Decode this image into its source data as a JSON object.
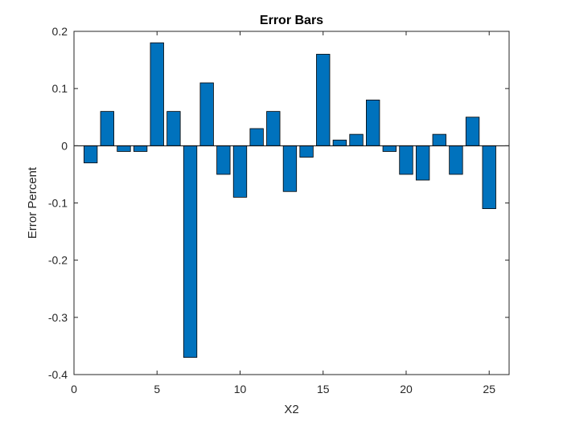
{
  "chart_data": {
    "type": "bar",
    "title": "Error Bars",
    "xlabel": "X2",
    "ylabel": "Error Percent",
    "x": [
      1,
      2,
      3,
      4,
      5,
      6,
      7,
      8,
      9,
      10,
      11,
      12,
      13,
      14,
      15,
      16,
      17,
      18,
      19,
      20,
      21,
      22,
      23,
      24,
      25
    ],
    "values": [
      -0.03,
      0.06,
      -0.01,
      -0.01,
      0.18,
      0.06,
      -0.37,
      0.11,
      -0.05,
      -0.09,
      0.03,
      0.06,
      -0.08,
      -0.02,
      0.16,
      0.01,
      0.02,
      0.08,
      -0.01,
      -0.05,
      -0.06,
      0.02,
      -0.05,
      0.05,
      -0.11
    ],
    "xlim": [
      0,
      26.2
    ],
    "ylim": [
      -0.4,
      0.2
    ],
    "xticks": [
      0,
      5,
      10,
      15,
      20,
      25
    ],
    "xtick_labels": [
      "0",
      "5",
      "10",
      "15",
      "20",
      "25"
    ],
    "yticks": [
      -0.4,
      -0.3,
      -0.2,
      -0.1,
      0,
      0.1,
      0.2
    ],
    "ytick_labels": [
      "-0.4",
      "-0.3",
      "-0.2",
      "-0.1",
      "0",
      "0.1",
      "0.2"
    ],
    "grid": false,
    "bar_color": "#0072BD",
    "edge_color": "#000000"
  }
}
